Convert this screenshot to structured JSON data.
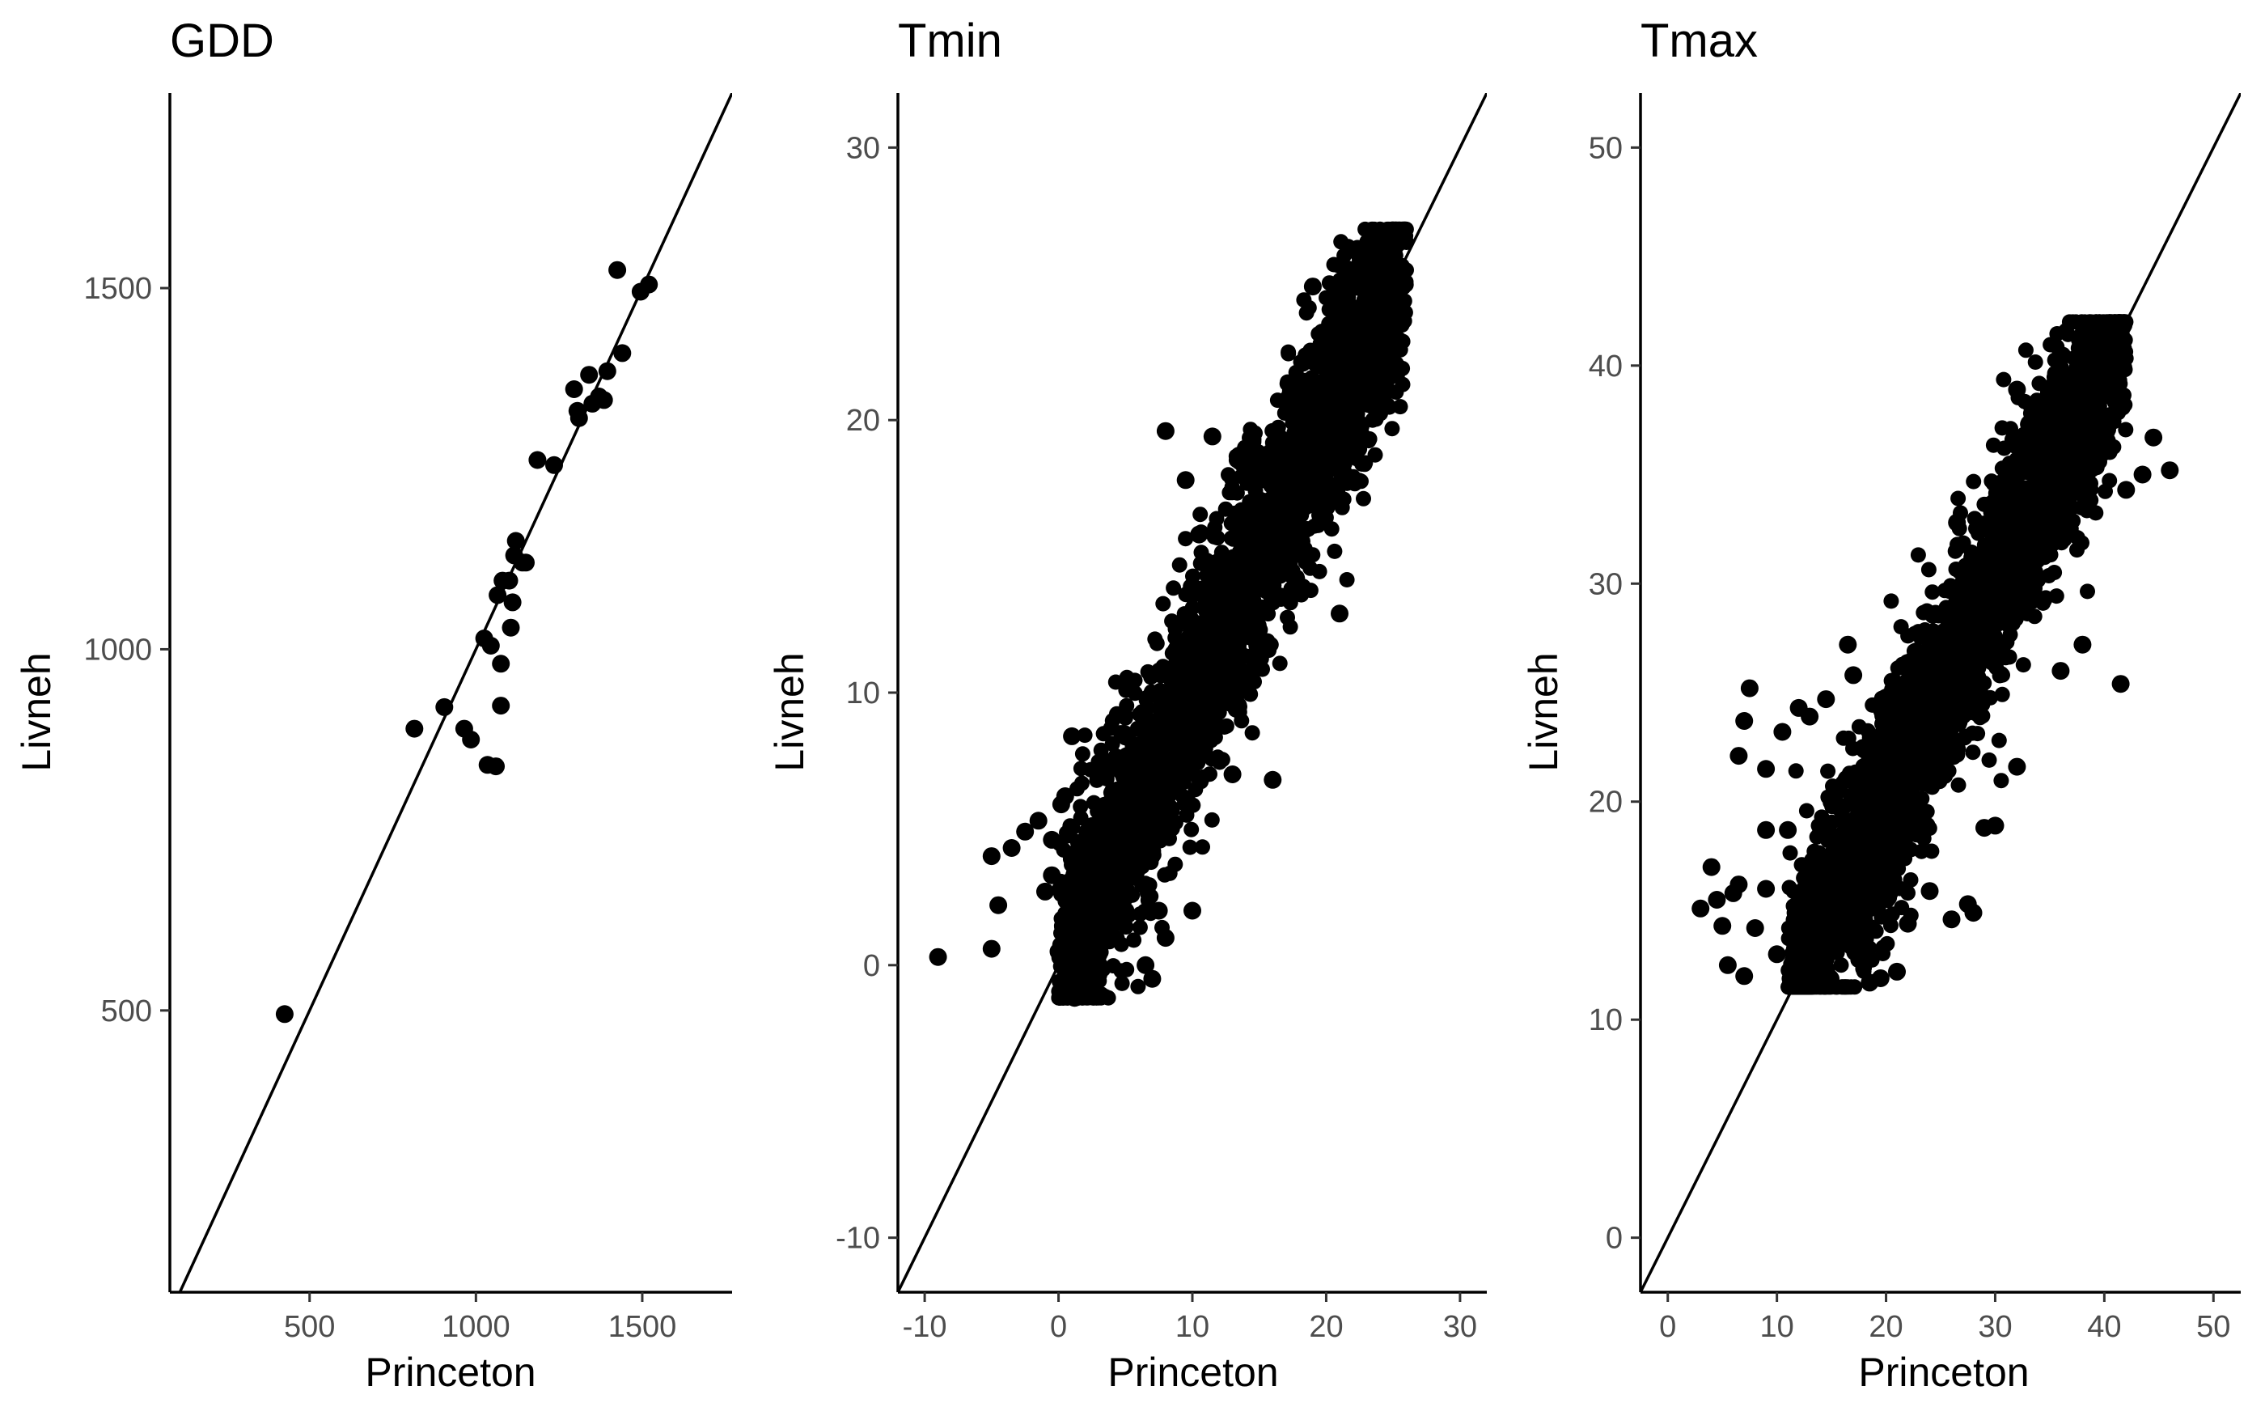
{
  "chart_data": [
    {
      "type": "scatter",
      "title": "GDD",
      "xlabel": "Princeton",
      "ylabel": "Livneh",
      "xlim": [
        80,
        1770
      ],
      "ylim": [
        110,
        1770
      ],
      "xticks": [
        500,
        1000,
        1500
      ],
      "yticks": [
        500,
        1000,
        1500
      ],
      "xtick_labels": [
        "500",
        "1000",
        "1500"
      ],
      "ytick_labels": [
        "500",
        "1000",
        "1500"
      ],
      "reference_line": "y = x",
      "grid": false,
      "legend": "none",
      "points": [
        [
          425,
          495
        ],
        [
          815,
          890
        ],
        [
          905,
          920
        ],
        [
          965,
          890
        ],
        [
          985,
          875
        ],
        [
          1025,
          1015
        ],
        [
          1035,
          840
        ],
        [
          1045,
          1005
        ],
        [
          1060,
          838
        ],
        [
          1075,
          980
        ],
        [
          1075,
          922
        ],
        [
          1065,
          1075
        ],
        [
          1080,
          1095
        ],
        [
          1100,
          1095
        ],
        [
          1105,
          1030
        ],
        [
          1110,
          1065
        ],
        [
          1115,
          1130
        ],
        [
          1120,
          1150
        ],
        [
          1140,
          1120
        ],
        [
          1150,
          1120
        ],
        [
          1185,
          1262
        ],
        [
          1235,
          1255
        ],
        [
          1295,
          1360
        ],
        [
          1305,
          1330
        ],
        [
          1310,
          1320
        ],
        [
          1340,
          1380
        ],
        [
          1350,
          1340
        ],
        [
          1370,
          1350
        ],
        [
          1385,
          1345
        ],
        [
          1395,
          1385
        ],
        [
          1425,
          1525
        ],
        [
          1440,
          1410
        ],
        [
          1495,
          1495
        ],
        [
          1520,
          1505
        ]
      ]
    },
    {
      "type": "scatter",
      "title": "Tmin",
      "xlabel": "Princeton",
      "ylabel": "Livneh",
      "xlim": [
        -12,
        32
      ],
      "ylim": [
        -12,
        32
      ],
      "xticks": [
        -10,
        0,
        10,
        20,
        30
      ],
      "yticks": [
        -10,
        0,
        10,
        20,
        30
      ],
      "xtick_labels": [
        "-10",
        "0",
        "10",
        "20",
        "30"
      ],
      "ytick_labels": [
        "-10",
        "0",
        "10",
        "20",
        "30"
      ],
      "reference_line": "y = x",
      "grid": false,
      "legend": "none",
      "cluster": {
        "x_range": [
          0,
          26
        ],
        "y_range": [
          -1.2,
          27
        ],
        "center_slope": 1.0,
        "spread_sd": 2.2,
        "n_points": 2600
      },
      "points": [
        [
          -9,
          0.3
        ],
        [
          -5,
          0.6
        ],
        [
          -5,
          4
        ],
        [
          -4.5,
          2.2
        ],
        [
          -3.5,
          4.3
        ],
        [
          -2.5,
          4.9
        ],
        [
          -1.5,
          5.3
        ],
        [
          -1,
          2.7
        ],
        [
          -0.5,
          3.3
        ],
        [
          -0.5,
          4.6
        ],
        [
          0,
          0.5
        ],
        [
          0.2,
          5.9
        ],
        [
          0.5,
          6.2
        ],
        [
          1,
          1.8
        ],
        [
          1,
          8.4
        ],
        [
          1.2,
          -1.2
        ],
        [
          3,
          0.4
        ],
        [
          5,
          2
        ],
        [
          6.5,
          0
        ],
        [
          7,
          -0.5
        ],
        [
          7.5,
          2
        ],
        [
          8,
          1
        ],
        [
          10,
          2
        ],
        [
          8,
          19.6
        ],
        [
          9.5,
          17.8
        ],
        [
          10.5,
          15.8
        ],
        [
          11.5,
          19.4
        ],
        [
          13.5,
          18.7
        ],
        [
          14.5,
          19.3
        ],
        [
          19,
          24.9
        ],
        [
          20,
          16.8
        ],
        [
          21,
          12.9
        ],
        [
          22,
          25
        ],
        [
          25,
          26.8
        ],
        [
          24,
          20.5
        ],
        [
          13,
          7
        ],
        [
          16,
          6.8
        ]
      ]
    },
    {
      "type": "scatter",
      "title": "Tmax",
      "xlabel": "Princeton",
      "ylabel": "Livneh",
      "xlim": [
        -2.5,
        52.5
      ],
      "ylim": [
        -2.5,
        52.5
      ],
      "xticks": [
        0,
        10,
        20,
        30,
        40,
        50
      ],
      "yticks": [
        0,
        10,
        20,
        30,
        40,
        50
      ],
      "xtick_labels": [
        "0",
        "10",
        "20",
        "30",
        "40",
        "50"
      ],
      "ytick_labels": [
        "0",
        "10",
        "20",
        "30",
        "40",
        "50"
      ],
      "reference_line": "y = x",
      "grid": false,
      "legend": "none",
      "cluster": {
        "x_range": [
          11,
          42
        ],
        "y_range": [
          11.5,
          42
        ],
        "center_slope": 1.0,
        "spread_sd": 2.6,
        "n_points": 2600
      },
      "points": [
        [
          3,
          15.1
        ],
        [
          4,
          17
        ],
        [
          4.5,
          15.5
        ],
        [
          5,
          14.3
        ],
        [
          5.5,
          12.5
        ],
        [
          6,
          15.8
        ],
        [
          6.5,
          16.2
        ],
        [
          6.5,
          22.1
        ],
        [
          7,
          23.7
        ],
        [
          7,
          12
        ],
        [
          7.5,
          25.2
        ],
        [
          8,
          14.2
        ],
        [
          9,
          16
        ],
        [
          9,
          18.7
        ],
        [
          9,
          21.5
        ],
        [
          10,
          13
        ],
        [
          10.5,
          23.2
        ],
        [
          11,
          18.7
        ],
        [
          11.5,
          14.1
        ],
        [
          12,
          24.3
        ],
        [
          13,
          23.9
        ],
        [
          14.5,
          24.7
        ],
        [
          16.5,
          27.2
        ],
        [
          17,
          25.8
        ],
        [
          18.5,
          11.7
        ],
        [
          19.5,
          11.9
        ],
        [
          21,
          12.2
        ],
        [
          22,
          14.4
        ],
        [
          24,
          15.9
        ],
        [
          26,
          14.6
        ],
        [
          27.5,
          15.3
        ],
        [
          28,
          14.9
        ],
        [
          29,
          18.8
        ],
        [
          30,
          18.9
        ],
        [
          32,
          21.6
        ],
        [
          36,
          26
        ],
        [
          38,
          27.2
        ],
        [
          39,
          41.9
        ],
        [
          39,
          36.5
        ],
        [
          40.5,
          39.8
        ],
        [
          41.5,
          25.4
        ],
        [
          42,
          34.3
        ],
        [
          43.5,
          35
        ],
        [
          44.5,
          36.7
        ],
        [
          46,
          35.2
        ],
        [
          32,
          38.9
        ],
        [
          35,
          38.4
        ],
        [
          26.5,
          32.8
        ]
      ]
    }
  ]
}
